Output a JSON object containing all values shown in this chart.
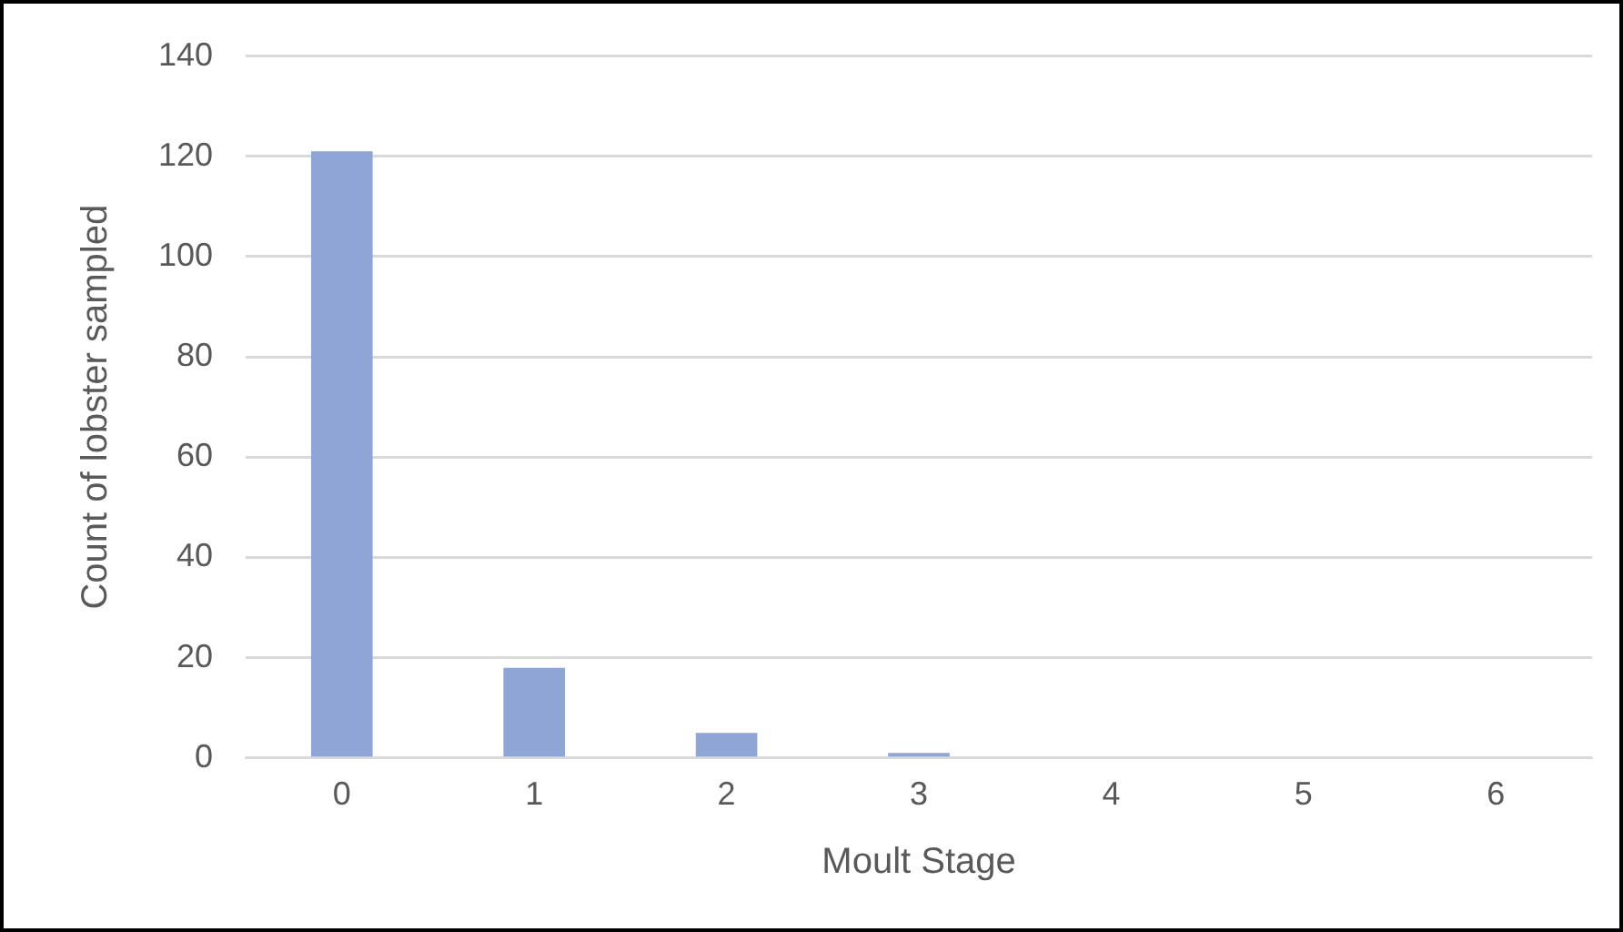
{
  "chart_data": {
    "type": "bar",
    "xlabel": "Moult Stage",
    "ylabel": "Count of lobster sampled",
    "categories": [
      "0",
      "1",
      "2",
      "3",
      "4",
      "5",
      "6"
    ],
    "values": [
      121,
      18,
      5,
      1,
      0,
      0,
      0
    ],
    "color": "#8fa5d6",
    "ylim": [
      0,
      140
    ],
    "yticks": [
      0,
      20,
      40,
      60,
      80,
      100,
      120,
      140
    ],
    "grid": "y"
  }
}
